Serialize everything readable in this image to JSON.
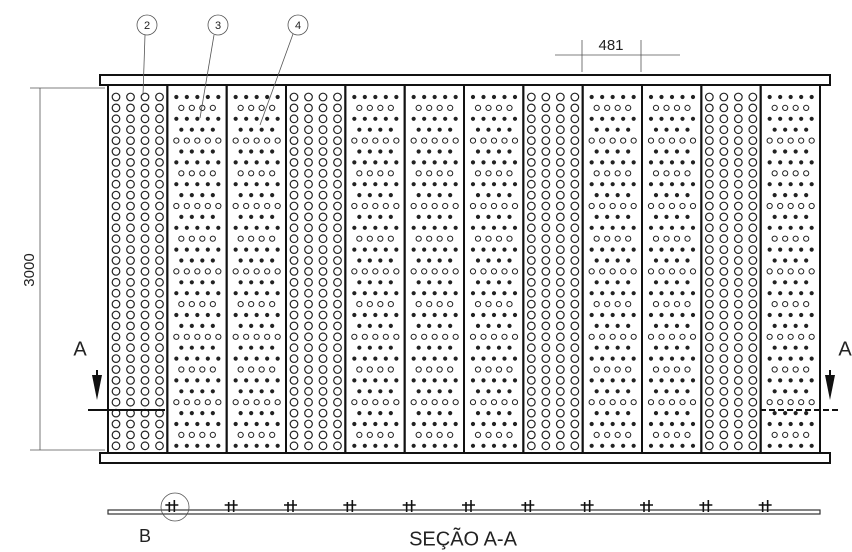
{
  "balloons": [
    "2",
    "3",
    "4"
  ],
  "dimensions": {
    "width": "481",
    "height": "3000"
  },
  "section_marks": [
    "A",
    "A"
  ],
  "detail": "B",
  "section_title": "SEÇÃO A-A"
}
